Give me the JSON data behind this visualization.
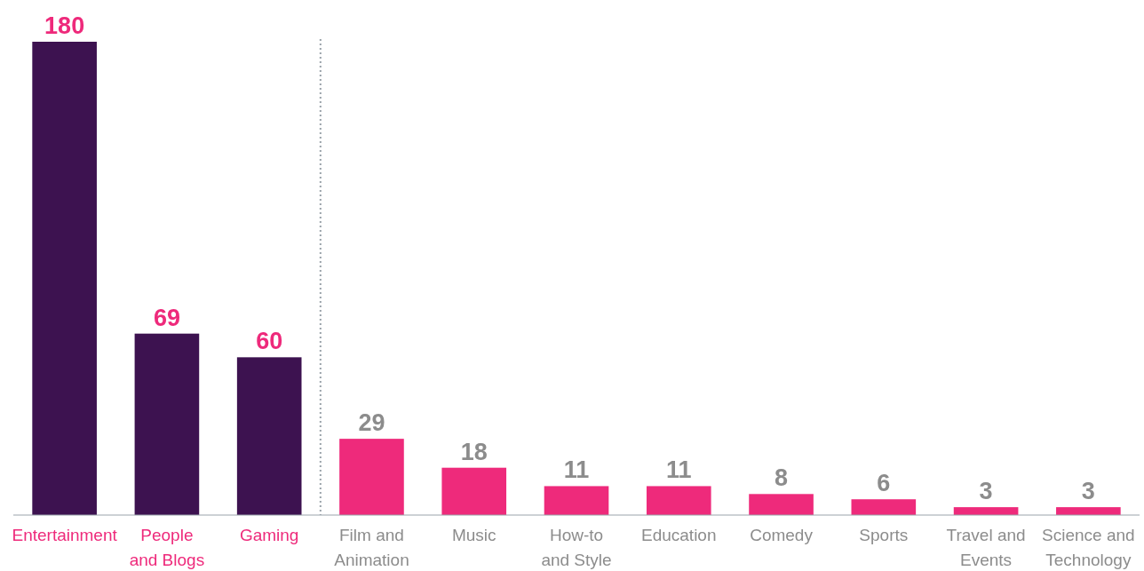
{
  "chart_data": {
    "type": "bar",
    "categories": [
      "Entertainment",
      "People\nand Blogs",
      "Gaming",
      "Film and\nAnimation",
      "Music",
      "How-to\nand Style",
      "Education",
      "Comedy",
      "Sports",
      "Travel and\nEvents",
      "Science and\nTechnology"
    ],
    "values": [
      180,
      69,
      60,
      29,
      18,
      11,
      11,
      8,
      6,
      3,
      3
    ],
    "colors": [
      "#3d1250",
      "#3d1250",
      "#3d1250",
      "#ee2a7b",
      "#ee2a7b",
      "#ee2a7b",
      "#ee2a7b",
      "#ee2a7b",
      "#ee2a7b",
      "#ee2a7b",
      "#ee2a7b"
    ],
    "data_labels": true
  }
}
